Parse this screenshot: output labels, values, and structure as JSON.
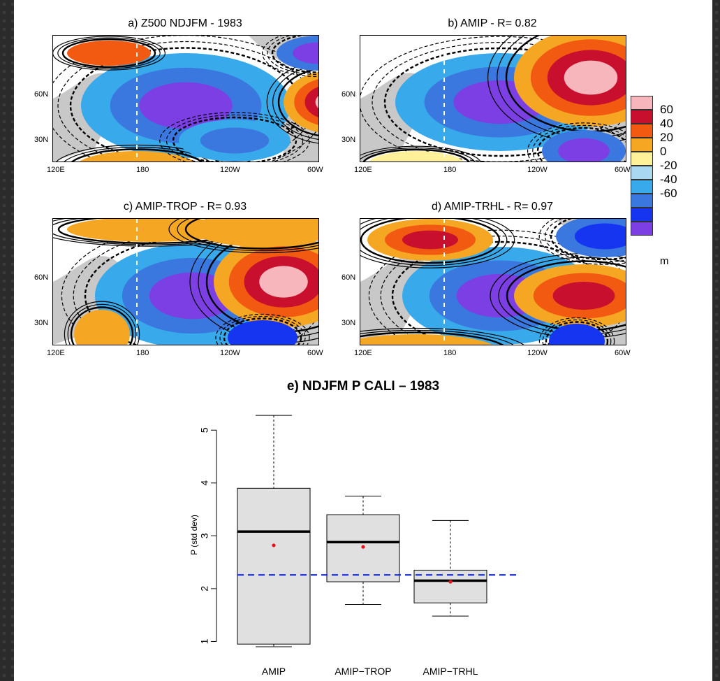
{
  "maps": {
    "colorbar": {
      "labels": [
        "60",
        "40",
        "20",
        "0",
        "-20",
        "-40",
        "-60"
      ],
      "unit": "m",
      "colors": [
        "#f7b6bc",
        "#c8102e",
        "#f25a12",
        "#f5a623",
        "#fff09a",
        "#a9d8f2",
        "#38a9ea",
        "#3a78e0",
        "#1535f0",
        "#7b3fe4"
      ]
    },
    "land_color": "#c8c8c8",
    "panels": [
      {
        "title": "a) Z500 NDJFM - 1983",
        "x_ticks": [
          "120E",
          "180",
          "120W",
          "60W"
        ],
        "y_ticks": [
          "60N",
          "30N"
        ]
      },
      {
        "title": "b) AMIP - R= 0.82",
        "x_ticks": [
          "120E",
          "180",
          "120W",
          "60W"
        ],
        "y_ticks": [
          "60N",
          "30N"
        ]
      },
      {
        "title": "c) AMIP-TROP - R= 0.93",
        "x_ticks": [
          "120E",
          "180",
          "120W",
          "60W"
        ],
        "y_ticks": [
          "60N",
          "30N"
        ]
      },
      {
        "title": "d) AMIP-TRHL - R= 0.97",
        "x_ticks": [
          "120E",
          "180",
          "120W",
          "60W"
        ],
        "y_ticks": [
          "60N",
          "30N"
        ]
      }
    ]
  },
  "chart_data": {
    "type": "boxplot",
    "title": "e) NDJFM P CALI – 1983",
    "ylabel": "P (std dev)",
    "xlabel": "",
    "ylim": [
      0.9,
      5.4
    ],
    "yticks": [
      1,
      2,
      3,
      4,
      5
    ],
    "reference_line": {
      "value": 2.26,
      "style": "dashed",
      "color": "#1a2ee0"
    },
    "box_color": "#e0e0e0",
    "mean_color": "#e8101a",
    "categories": [
      "AMIP",
      "AMIP−TROP",
      "AMIP−TRHL"
    ],
    "boxes": [
      {
        "name": "AMIP",
        "whisker_low": 0.9,
        "q1": 0.95,
        "median": 3.08,
        "q3": 3.9,
        "whisker_high": 5.28,
        "mean": 2.82
      },
      {
        "name": "AMIP−TROP",
        "whisker_low": 1.7,
        "q1": 2.13,
        "median": 2.88,
        "q3": 3.4,
        "whisker_high": 3.75,
        "mean": 2.79
      },
      {
        "name": "AMIP−TRHL",
        "whisker_low": 1.48,
        "q1": 1.73,
        "median": 2.15,
        "q3": 2.35,
        "whisker_high": 3.29,
        "mean": 2.13
      }
    ]
  }
}
